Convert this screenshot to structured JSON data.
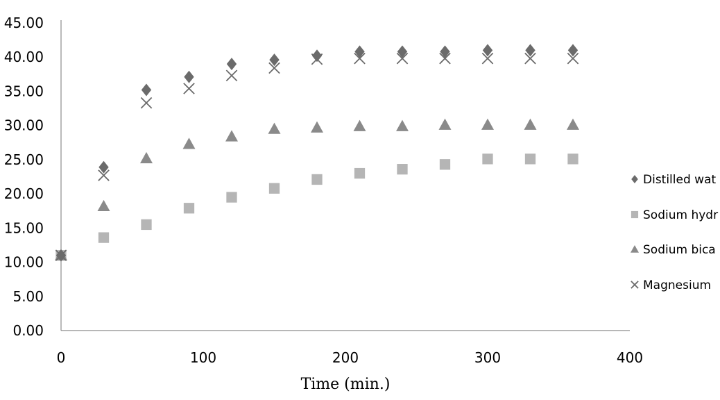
{
  "chart_data": {
    "type": "scatter",
    "title": "",
    "xlabel": "Time (min.)",
    "ylabel": "",
    "xlim": [
      0,
      400
    ],
    "ylim": [
      0,
      45
    ],
    "x_ticks": [
      "0",
      "100",
      "200",
      "300",
      "400"
    ],
    "y_ticks": [
      "0.00",
      "5.00",
      "10.00",
      "15.00",
      "20.00",
      "25.00",
      "30.00",
      "35.00",
      "40.00",
      "45.00"
    ],
    "grid": false,
    "legend_position": "right",
    "x": [
      0,
      30,
      60,
      90,
      120,
      150,
      180,
      210,
      240,
      270,
      300,
      330,
      360
    ],
    "series": [
      {
        "name": "Distilled wat",
        "marker": "diamond",
        "color": "#6b6b6b",
        "values": [
          11.0,
          23.9,
          35.2,
          37.1,
          39.0,
          39.6,
          40.2,
          40.8,
          40.8,
          40.8,
          41.0,
          41.0,
          41.0
        ]
      },
      {
        "name": "Sodium hydr",
        "marker": "square",
        "color": "#b5b5b5",
        "values": [
          11.0,
          13.6,
          15.5,
          17.9,
          19.5,
          20.8,
          22.1,
          23.0,
          23.6,
          24.3,
          25.1,
          25.1,
          25.1
        ]
      },
      {
        "name": "Sodium bica",
        "marker": "triangle",
        "color": "#8a8a8a",
        "values": [
          11.0,
          18.2,
          25.2,
          27.3,
          28.4,
          29.5,
          29.7,
          29.9,
          29.9,
          30.1,
          30.1,
          30.1,
          30.1
        ]
      },
      {
        "name": "Magnesium",
        "marker": "x",
        "color": "#6b6b6b",
        "values": [
          11.0,
          22.7,
          33.3,
          35.4,
          37.3,
          38.4,
          39.7,
          39.8,
          39.8,
          39.8,
          39.8,
          39.8,
          39.8
        ]
      }
    ]
  }
}
